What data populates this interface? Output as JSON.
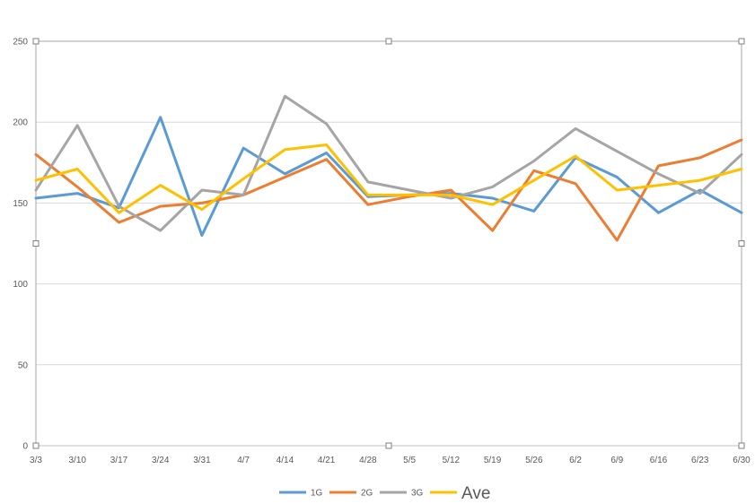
{
  "chart_data": {
    "type": "line",
    "title": "",
    "xlabel": "",
    "ylabel": "",
    "ylim": [
      0,
      250
    ],
    "yticks": [
      0,
      50,
      100,
      150,
      200,
      250
    ],
    "grid": true,
    "legend_position": "bottom",
    "categories": [
      "3/3",
      "3/10",
      "3/17",
      "3/24",
      "3/31",
      "4/7",
      "4/14",
      "4/21",
      "4/28",
      "5/5",
      "5/12",
      "5/19",
      "5/26",
      "6/2",
      "6/9",
      "6/16",
      "6/23",
      "6/30"
    ],
    "series": [
      {
        "name": "1G",
        "color": "#5B9BD5",
        "values": [
          153,
          156,
          147,
          203,
          130,
          184,
          168,
          181,
          154,
          155,
          156,
          153,
          145,
          178,
          166,
          144,
          158,
          144
        ]
      },
      {
        "name": "2G",
        "color": "#ED7D31",
        "values": [
          180,
          160,
          138,
          148,
          150,
          155,
          166,
          177,
          149,
          154,
          158,
          133,
          170,
          162,
          127,
          173,
          178,
          189
        ]
      },
      {
        "name": "3G",
        "color": "#A5A5A5",
        "values": [
          158,
          198,
          148,
          133,
          158,
          155,
          216,
          199,
          163,
          158,
          153,
          160,
          176,
          196,
          182,
          168,
          156,
          180
        ]
      },
      {
        "name": "Ave",
        "color": "#FFC000",
        "values": [
          164,
          171,
          144,
          161,
          146,
          165,
          183,
          186,
          155,
          155,
          155,
          149,
          164,
          179,
          158,
          161,
          164,
          171
        ]
      }
    ]
  }
}
